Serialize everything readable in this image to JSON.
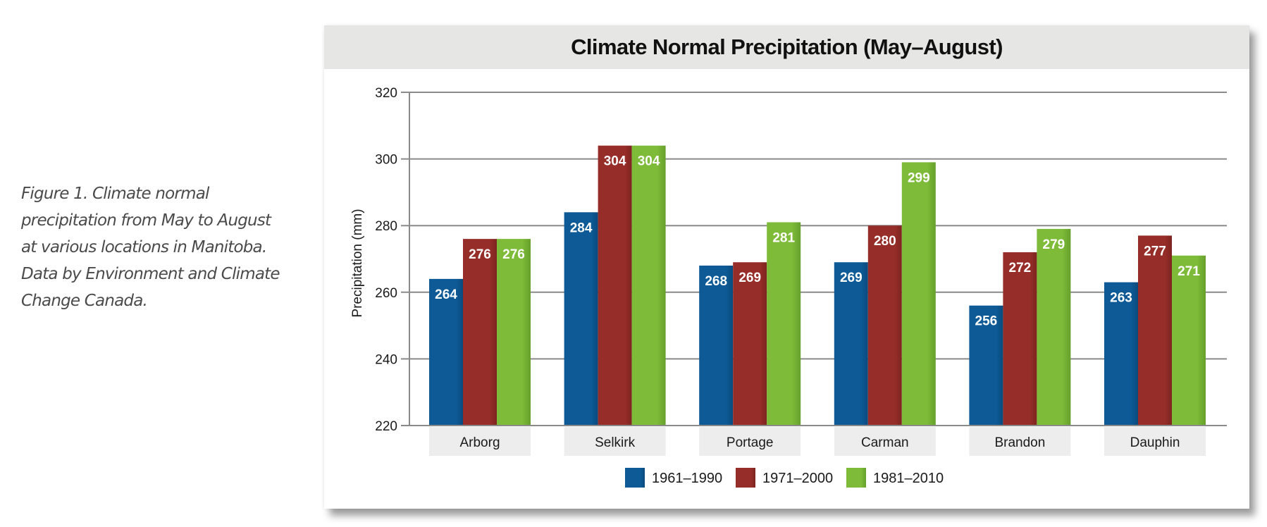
{
  "caption": {
    "lines": [
      "Figure 1. Climate normal",
      "precipitation from May to August",
      "at various locations in Manitoba.",
      "Data by Environment and Climate",
      "Change Canada."
    ]
  },
  "colors": {
    "title_band": "#e6e7e5",
    "category_band": "#ededed",
    "gridline": "#8a8a8a",
    "series": [
      "#0d5a96",
      "#962d28",
      "#7dbb38"
    ]
  },
  "chart_data": {
    "type": "bar",
    "title": "Climate Normal Precipitation (May–August)",
    "xlabel": "",
    "ylabel": "Precipitation (mm)",
    "ylim": [
      220,
      320
    ],
    "yticks": [
      220,
      240,
      260,
      280,
      300,
      320
    ],
    "grid": true,
    "legend_position": "bottom-center",
    "categories": [
      "Arborg",
      "Selkirk",
      "Portage",
      "Carman",
      "Brandon",
      "Dauphin"
    ],
    "series": [
      {
        "name": "1961–1990",
        "values": [
          264,
          284,
          268,
          269,
          256,
          263
        ]
      },
      {
        "name": "1971–2000",
        "values": [
          276,
          304,
          269,
          280,
          272,
          277
        ]
      },
      {
        "name": "1981–2010",
        "values": [
          276,
          304,
          281,
          299,
          279,
          271
        ]
      }
    ]
  }
}
